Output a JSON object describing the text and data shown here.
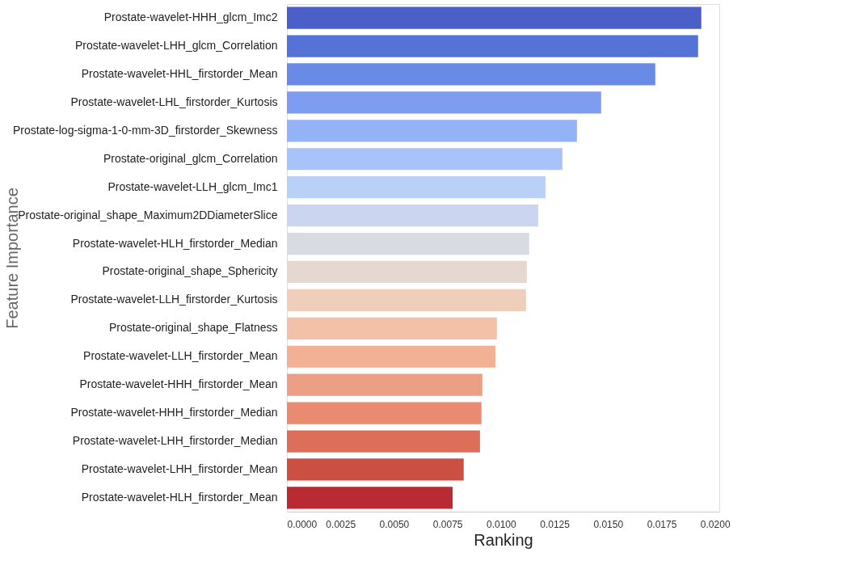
{
  "chart_data": {
    "type": "bar",
    "orientation": "horizontal",
    "xlabel": "Ranking",
    "ylabel": "Feature Importance",
    "categories": [
      "Prostate-wavelet-HHH_glcm_Imc2",
      "Prostate-wavelet-LHH_glcm_Correlation",
      "Prostate-wavelet-HHL_firstorder_Mean",
      "Prostate-wavelet-LHL_firstorder_Kurtosis",
      "Prostate-log-sigma-1-0-mm-3D_firstorder_Skewness",
      "Prostate-original_glcm_Correlation",
      "Prostate-wavelet-LLH_glcm_Imc1",
      "Prostate-original_shape_Maximum2DDiameterSlice",
      "Prostate-wavelet-HLH_firstorder_Median",
      "Prostate-original_shape_Sphericity",
      "Prostate-wavelet-LLH_firstorder_Kurtosis",
      "Prostate-original_shape_Flatness",
      "Prostate-wavelet-LLH_firstorder_Mean",
      "Prostate-wavelet-HHH_firstorder_Mean",
      "Prostate-wavelet-HHH_firstorder_Median",
      "Prostate-wavelet-LHH_firstorder_Median",
      "Prostate-wavelet-LHH_firstorder_Mean",
      "Prostate-wavelet-HLH_firstorder_Mean"
    ],
    "values": [
      0.01936,
      0.01921,
      0.01721,
      0.01468,
      0.01355,
      0.01287,
      0.01208,
      0.01174,
      0.01132,
      0.01121,
      0.01117,
      0.00981,
      0.00974,
      0.00913,
      0.00909,
      0.00902,
      0.00826,
      0.00774
    ],
    "colors": [
      "#4a5fc8",
      "#5572d6",
      "#6a8be5",
      "#7f9df0",
      "#93b2f7",
      "#a7c3f9",
      "#b9d0f7",
      "#cbd5ef",
      "#d9dbe3",
      "#e6d7d0",
      "#efcfbc",
      "#f2c1a8",
      "#f2b095",
      "#ed9f85",
      "#e88b70",
      "#dd6f5a",
      "#cc4f44",
      "#b92a33"
    ],
    "xlim": [
      0,
      0.0202
    ],
    "xticks": [
      {
        "value": 0,
        "label": "0.0000"
      },
      {
        "value": 0.0025,
        "label": "0.0025"
      },
      {
        "value": 0.005,
        "label": "0.0050"
      },
      {
        "value": 0.0075,
        "label": "0.0075"
      },
      {
        "value": 0.01,
        "label": "0.0100"
      },
      {
        "value": 0.0125,
        "label": "0.0125"
      },
      {
        "value": 0.015,
        "label": "0.0150"
      },
      {
        "value": 0.0175,
        "label": "0.0175"
      },
      {
        "value": 0.02,
        "label": "0.0200"
      }
    ],
    "grid": false,
    "legend": false
  }
}
